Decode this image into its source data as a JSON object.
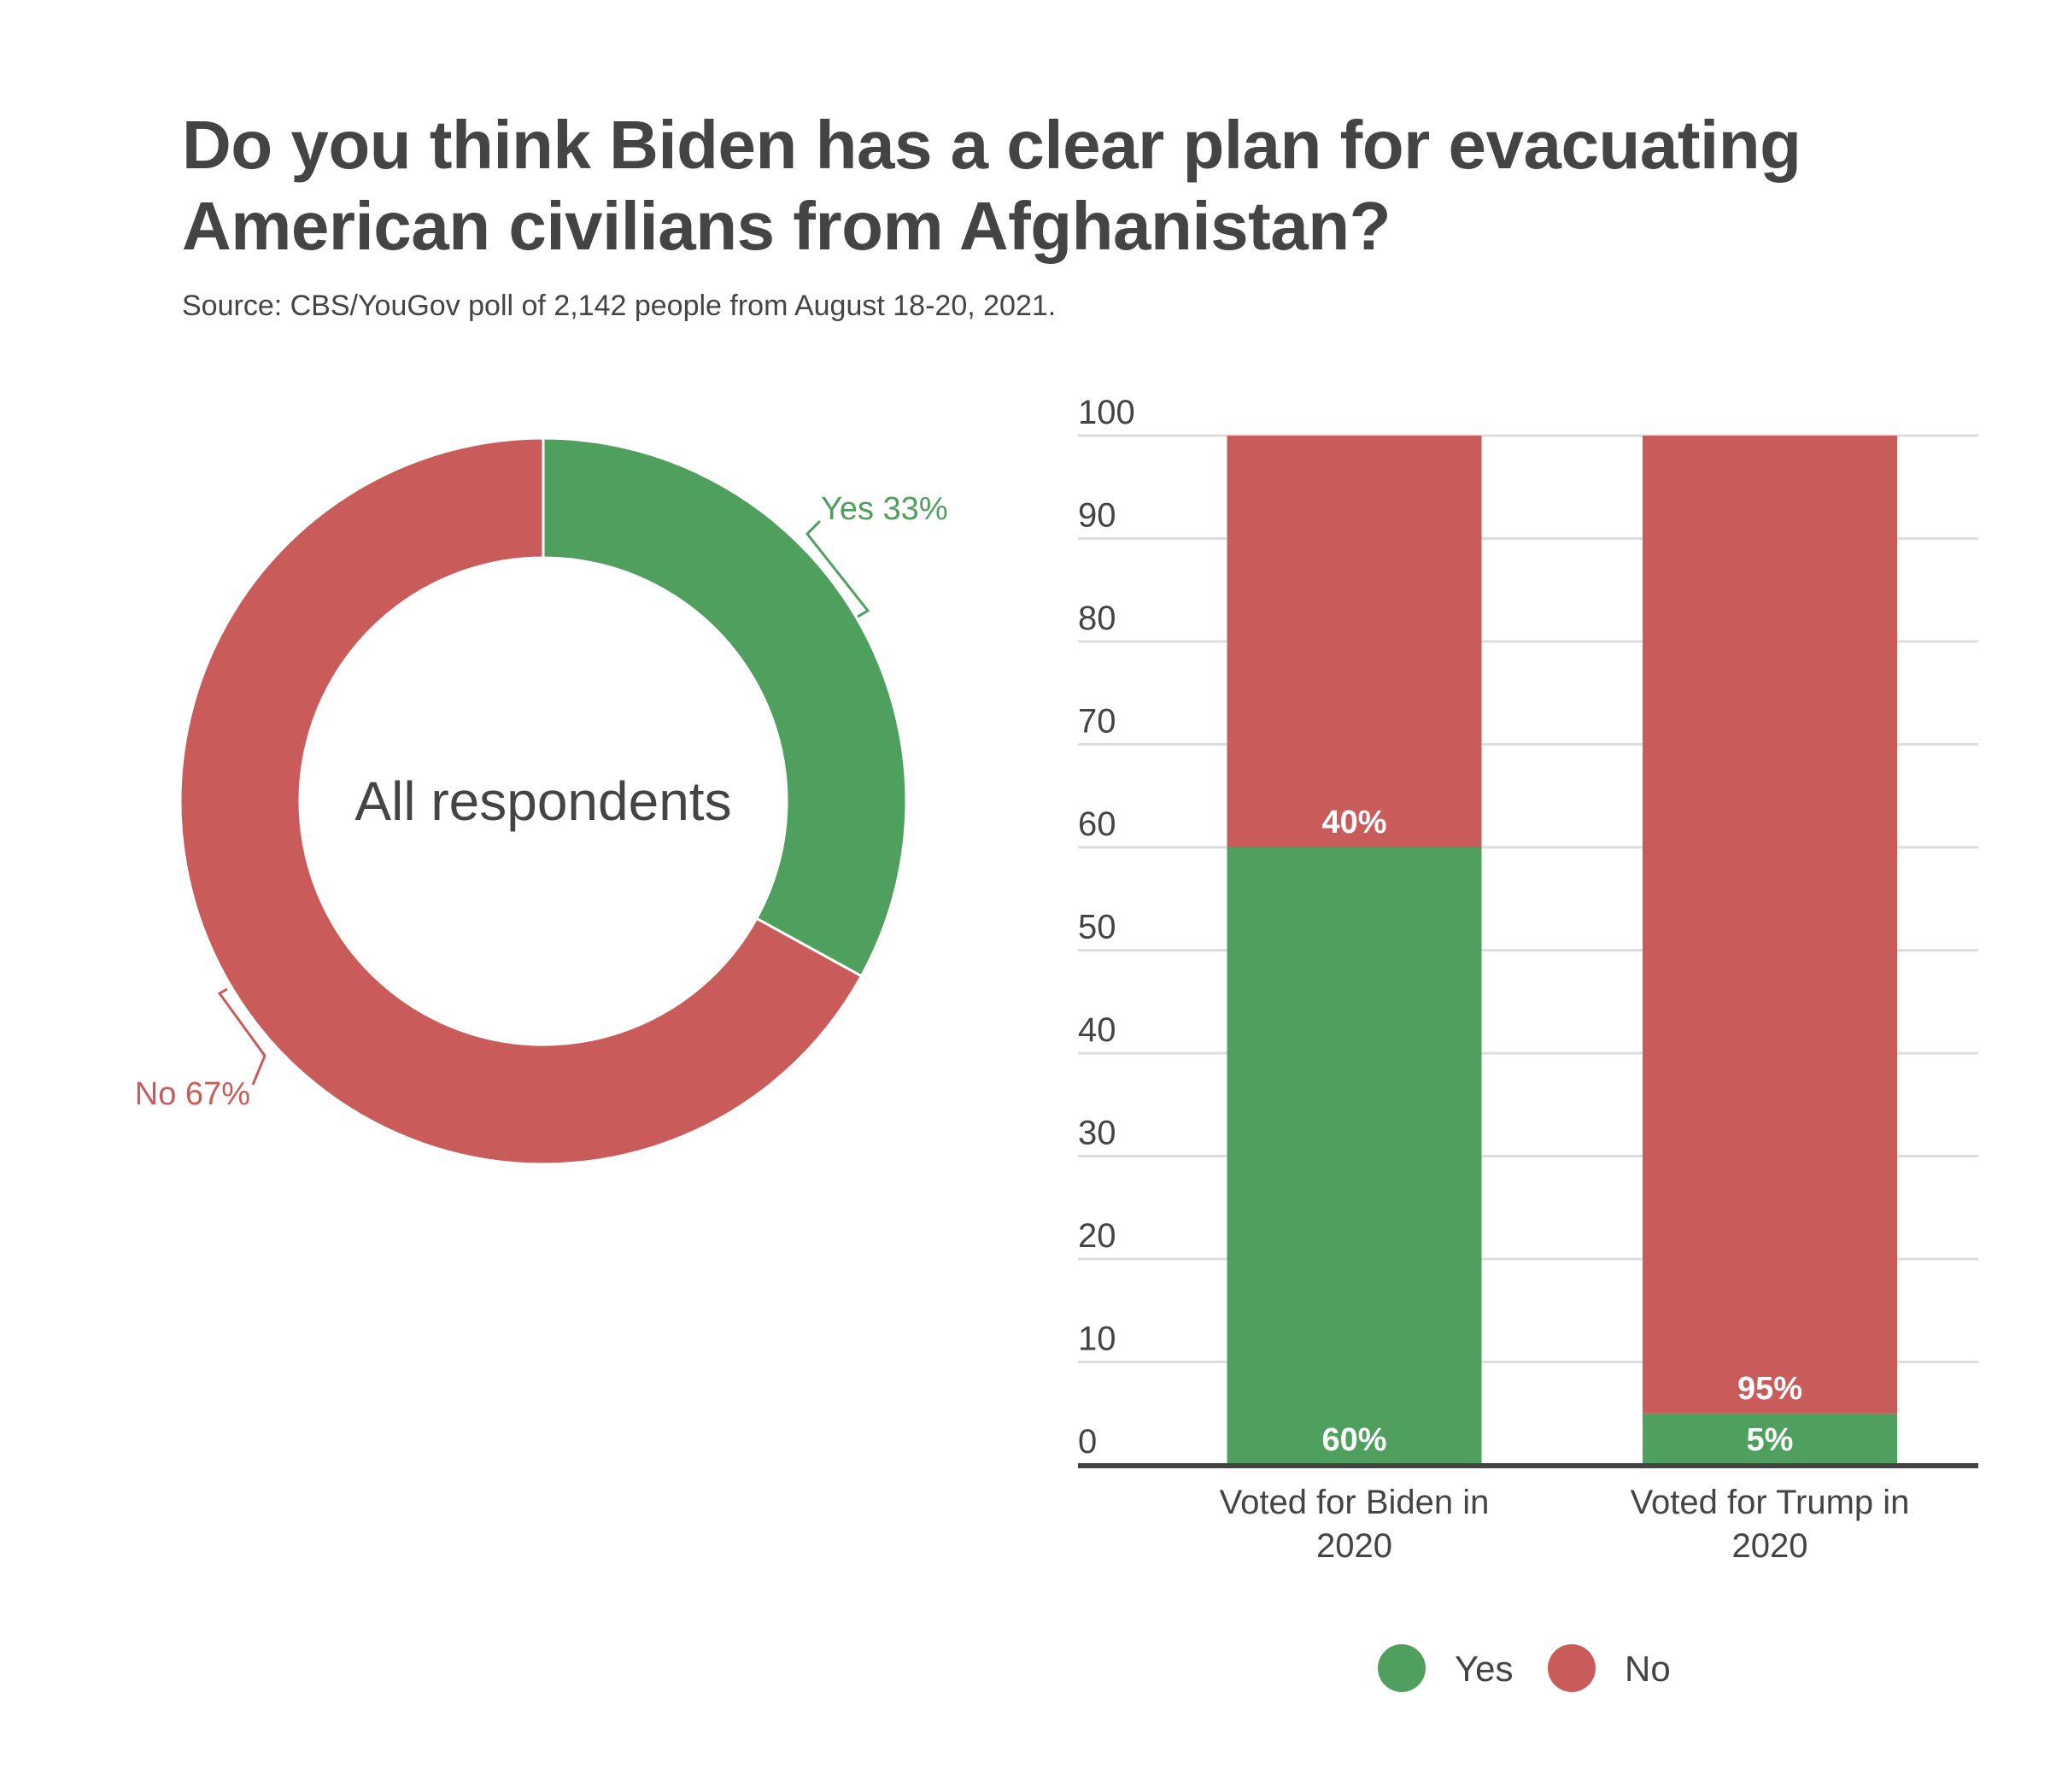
{
  "title": "Do you think Biden has a clear plan for evacuating American civilians from Afghanistan?",
  "subtitle": "Source: CBS/YouGov poll of 2,142 people from August 18-20, 2021.",
  "colors": {
    "yes": "#4fa05f",
    "no": "#c95c5a",
    "text": "#444444",
    "grid": "#dddddd"
  },
  "chart_data": [
    {
      "type": "pie",
      "variant": "donut",
      "center_label": "All respondents",
      "slices": [
        {
          "name": "Yes",
          "value": 33,
          "label": "Yes 33%",
          "color": "#4fa05f"
        },
        {
          "name": "No",
          "value": 67,
          "label": "No 67%",
          "color": "#c95c5a"
        }
      ]
    },
    {
      "type": "bar",
      "stacked": true,
      "categories": [
        "Voted for Biden in 2020",
        "Voted for Trump in 2020"
      ],
      "category_lines": [
        [
          "Voted for Biden in",
          "2020"
        ],
        [
          "Voted for Trump in",
          "2020"
        ]
      ],
      "series": [
        {
          "name": "Yes",
          "values": [
            60,
            5
          ],
          "labels": [
            "60%",
            "5%"
          ],
          "color": "#4fa05f"
        },
        {
          "name": "No",
          "values": [
            40,
            95
          ],
          "labels": [
            "40%",
            "95%"
          ],
          "color": "#c95c5a"
        }
      ],
      "ylim": [
        0,
        100
      ],
      "yticks": [
        0,
        10,
        20,
        30,
        40,
        50,
        60,
        70,
        80,
        90,
        100
      ],
      "grid": true,
      "xlabel": "",
      "ylabel": "",
      "legend": {
        "position": "bottom",
        "entries": [
          {
            "label": "Yes",
            "color": "#4fa05f"
          },
          {
            "label": "No",
            "color": "#c95c5a"
          }
        ]
      }
    }
  ]
}
